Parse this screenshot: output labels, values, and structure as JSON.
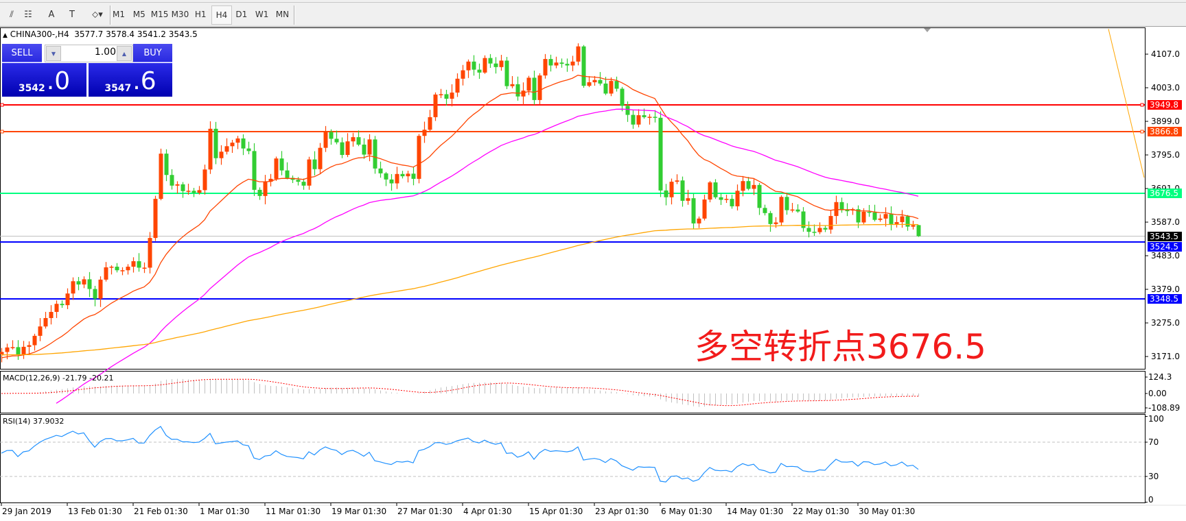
{
  "toolbar": {
    "tools": [
      {
        "name": "elliott-icon",
        "glyph": "⫽"
      },
      {
        "name": "fibo-icon",
        "glyph": "☷"
      },
      {
        "name": "text-icon",
        "glyph": "A"
      },
      {
        "name": "text-label-icon",
        "glyph": "T"
      },
      {
        "name": "arrows-icon",
        "glyph": "⬦▾"
      }
    ],
    "timeframes": [
      "M1",
      "M5",
      "M15",
      "M30",
      "H1",
      "H4",
      "D1",
      "W1",
      "MN"
    ],
    "active_timeframe": "H4"
  },
  "header": {
    "symbol": "CHINA300-,H4",
    "open": "3577.7",
    "high": "3578.4",
    "low": "3541.2",
    "close": "3543.5"
  },
  "trade": {
    "sell_label": "SELL",
    "buy_label": "BUY",
    "lot": "1.00",
    "sell_small": "3542",
    "sell_big": ".0",
    "buy_small": "3547",
    "buy_big": ".6"
  },
  "colors": {
    "up": "#ff4500",
    "down": "#32cd32",
    "ma_fast": "#ff4500",
    "ma_mid": "#ff00ff",
    "ma_slow": "#ffa500",
    "rsi": "#1e90ff",
    "macd_hist": "#c0c0c0",
    "macd_signal": "#ff0000",
    "annotation": "#f21b1b"
  },
  "price_axis": {
    "ticks": [
      "4107.0",
      "4003.0",
      "3899.0",
      "3795.0",
      "3691.0",
      "3587.0",
      "3483.0",
      "3379.0",
      "3275.0",
      "3171.0"
    ]
  },
  "levels": [
    {
      "value": "3949.8",
      "color": "#ff0000",
      "marker": true
    },
    {
      "value": "3866.8",
      "color": "#ff4500",
      "marker": true
    },
    {
      "value": "3676.5",
      "color": "#00ff7f",
      "marker": false
    },
    {
      "value": "3524.5",
      "color": "#0000ff",
      "marker": false
    },
    {
      "value": "3348.5",
      "color": "#0000ff",
      "marker": false
    }
  ],
  "current_price": {
    "value": "3543.5",
    "color": "#000000"
  },
  "candles": {
    "closes": [
      3185,
      3199,
      3200,
      3177,
      3201,
      3206,
      3235,
      3264,
      3290,
      3309,
      3334,
      3330,
      3366,
      3404,
      3394,
      3410,
      3380,
      3350,
      3409,
      3447,
      3449,
      3438,
      3438,
      3449,
      3466,
      3446,
      3446,
      3538,
      3659,
      3799,
      3733,
      3700,
      3704,
      3683,
      3684,
      3678,
      3686,
      3750,
      3876,
      3785,
      3805,
      3822,
      3833,
      3846,
      3815,
      3807,
      3687,
      3668,
      3712,
      3721,
      3784,
      3747,
      3724,
      3718,
      3712,
      3700,
      3781,
      3751,
      3817,
      3866,
      3845,
      3834,
      3795,
      3837,
      3850,
      3827,
      3796,
      3843,
      3753,
      3738,
      3719,
      3707,
      3736,
      3729,
      3737,
      3721,
      3854,
      3873,
      3912,
      3982,
      3983,
      3969,
      3988,
      4031,
      4057,
      4084,
      4059,
      4050,
      4095,
      4078,
      4067,
      4087,
      4008,
      4014,
      3976,
      3994,
      4034,
      3965,
      4041,
      4092,
      4072,
      4081,
      4077,
      4072,
      4084,
      4131,
      4009,
      4020,
      4027,
      4016,
      3985,
      4024,
      4000,
      3947,
      3919,
      3889,
      3918,
      3912,
      3913,
      3910,
      3685,
      3664,
      3712,
      3716,
      3653,
      3661,
      3583,
      3598,
      3657,
      3710,
      3664,
      3656,
      3659,
      3636,
      3684,
      3714,
      3690,
      3702,
      3631,
      3615,
      3581,
      3586,
      3665,
      3624,
      3626,
      3620,
      3569,
      3557,
      3556,
      3569,
      3564,
      3606,
      3649,
      3624,
      3623,
      3627,
      3586,
      3619,
      3617,
      3594,
      3598,
      3612,
      3581,
      3587,
      3605,
      3573,
      3577.7,
      3543.5
    ],
    "first_open": 3178,
    "last": {
      "open": 3577.7,
      "high": 3578.4,
      "low": 3541.2,
      "close": 3543.5
    }
  },
  "trendline": {
    "from_price": 4185,
    "to_price": 3725
  },
  "macd": {
    "label": "MACD(12,26,9) -21.79 -20.21",
    "ticks": [
      "124.3",
      "0.00",
      "-108.89"
    ],
    "max": 124.3,
    "min": -108.89
  },
  "rsi": {
    "label": "RSI(14) 37.9032",
    "ticks": [
      "100",
      "70",
      "30",
      "0"
    ],
    "levels": [
      70,
      30
    ]
  },
  "time_axis": [
    "29 Jan 2019",
    "13 Feb 01:30",
    "21 Feb 01:30",
    "1 Mar 01:30",
    "11 Mar 01:30",
    "19 Mar 01:30",
    "27 Mar 01:30",
    "4 Apr 01:30",
    "15 Apr 01:30",
    "23 Apr 01:30",
    "6 May 01:30",
    "14 May 01:30",
    "22 May 01:30",
    "30 May 01:30"
  ],
  "annotation": "多空转折点3676.5"
}
